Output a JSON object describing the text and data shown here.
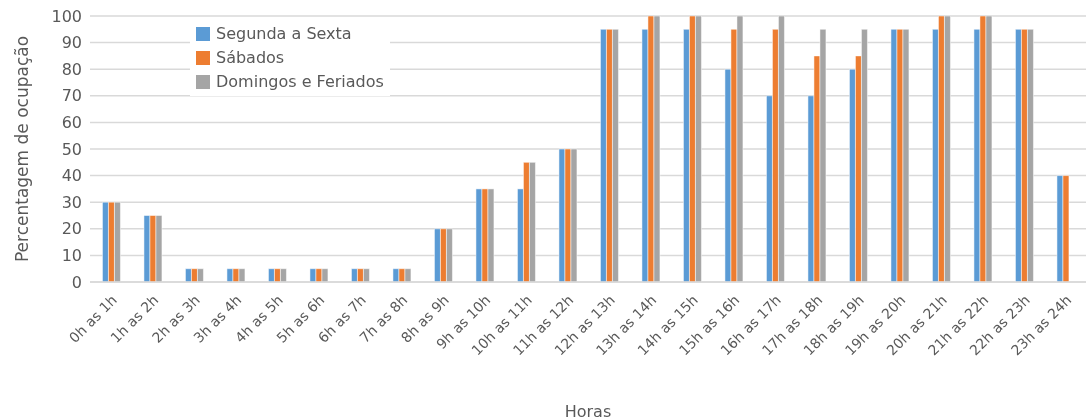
{
  "chart_data": {
    "type": "bar",
    "xlabel": "Horas",
    "ylabel": "Percentagem  de ocupação",
    "categories": [
      "0h as 1h",
      "1h as 2h",
      "2h as 3h",
      "3h as 4h",
      "4h as 5h",
      "5h as 6h",
      "6h as 7h",
      "7h as 8h",
      "8h as 9h",
      "9h as 10h",
      "10h as 11h",
      "11h as 12h",
      "12h as 13h",
      "13h as 14h",
      "14h as 15h",
      "15h as 16h",
      "16h as 17h",
      "17h as 18h",
      "18h as 19h",
      "19h as 20h",
      "20h as 21h",
      "21h as 22h",
      "22h as 23h",
      "23h as 24h"
    ],
    "series": [
      {
        "name": "Segunda a Sexta",
        "color": "#5b9bd5",
        "values": [
          30,
          25,
          5,
          5,
          5,
          5,
          5,
          5,
          20,
          35,
          35,
          50,
          95,
          95,
          95,
          80,
          70,
          70,
          80,
          95,
          95,
          95,
          95,
          40
        ]
      },
      {
        "name": "Sábados",
        "color": "#ed7d31",
        "values": [
          30,
          25,
          5,
          5,
          5,
          5,
          5,
          5,
          20,
          35,
          45,
          50,
          95,
          100,
          100,
          95,
          95,
          85,
          85,
          95,
          100,
          100,
          95,
          40
        ]
      },
      {
        "name": "Domingos e Feriados",
        "color": "#a5a5a5",
        "values": [
          30,
          25,
          5,
          5,
          5,
          5,
          5,
          5,
          20,
          35,
          45,
          50,
          95,
          100,
          100,
          100,
          100,
          95,
          95,
          95,
          100,
          100,
          95,
          null
        ]
      }
    ],
    "ylim": [
      0,
      100
    ],
    "yticks": [
      0,
      10,
      20,
      30,
      40,
      50,
      60,
      70,
      80,
      90,
      100
    ],
    "grid": "y",
    "legend": "top left"
  }
}
